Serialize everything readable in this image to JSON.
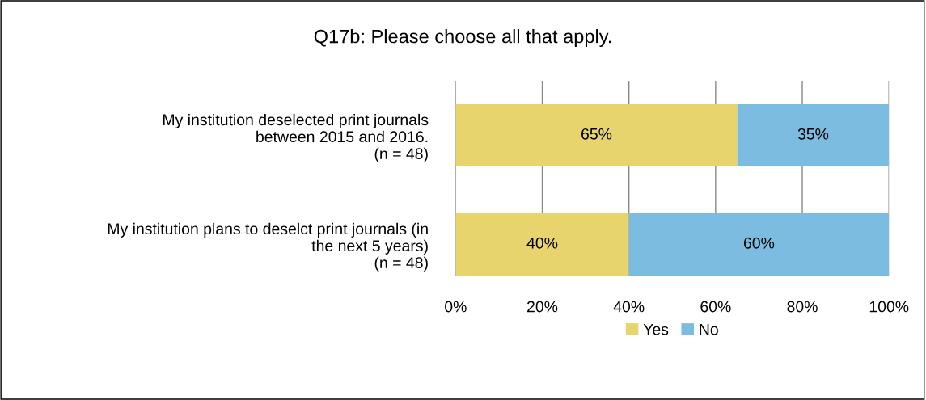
{
  "chart_data": {
    "type": "bar",
    "orientation": "horizontal",
    "stacked": true,
    "title": "Q17b: Please choose all that apply.",
    "categories": [
      "My institution deselected print journals\nbetween 2015 and 2016.\n(n = 48)",
      "My institution plans to deselct print journals (in\nthe next 5 years)\n(n = 48)"
    ],
    "series": [
      {
        "name": "Yes",
        "color": "#e8d46c",
        "values": [
          65,
          40
        ],
        "value_labels": [
          "65%",
          "40%"
        ]
      },
      {
        "name": "No",
        "color": "#7bbce0",
        "values": [
          35,
          60
        ],
        "value_labels": [
          "35%",
          "60%"
        ]
      }
    ],
    "xlim": [
      0,
      100
    ],
    "xticks": [
      {
        "value": 0,
        "label": "0%"
      },
      {
        "value": 20,
        "label": "20%"
      },
      {
        "value": 40,
        "label": "40%"
      },
      {
        "value": 60,
        "label": "60%"
      },
      {
        "value": 80,
        "label": "80%"
      },
      {
        "value": 100,
        "label": "100%"
      }
    ],
    "grid": "x",
    "legend": "bottom"
  }
}
